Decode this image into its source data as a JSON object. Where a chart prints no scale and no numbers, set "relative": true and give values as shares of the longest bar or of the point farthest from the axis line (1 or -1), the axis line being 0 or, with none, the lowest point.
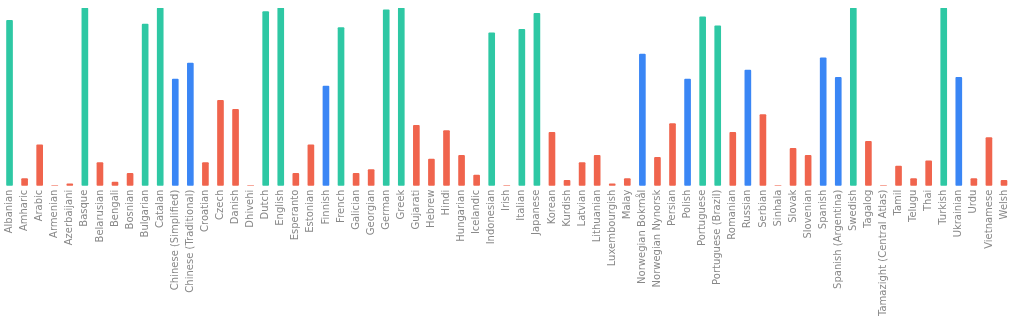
{
  "chart_data": {
    "type": "bar",
    "relative": true,
    "grid": false,
    "legend": false,
    "categories": [
      "Albanian",
      "Amharic",
      "Arabic",
      "Armenian",
      "Azerbaijani",
      "Basque",
      "Belarusian",
      "Bengali",
      "Bosnian",
      "Bulgarian",
      "Catalan",
      "Chinese (Simplified)",
      "Chinese (Traditional)",
      "Croatian",
      "Czech",
      "Danish",
      "Dhivehi",
      "Dutch",
      "English",
      "Esperanto",
      "Estonian",
      "Finnish",
      "French",
      "Galician",
      "Georgian",
      "German",
      "Greek",
      "Gujarati",
      "Hebrew",
      "Hindi",
      "Hungarian",
      "Icelandic",
      "Indonesian",
      "Irish",
      "Italian",
      "Japanese",
      "Korean",
      "Kurdish",
      "Latvian",
      "Lithuanian",
      "Luxembourgish",
      "Malay",
      "Norwegian Bokmål",
      "Norwegian Nynorsk",
      "Persian",
      "Polish",
      "Portuguese",
      "Portuguese (Brazil)",
      "Romanian",
      "Russian",
      "Serbian",
      "Sinhala",
      "Slovak",
      "Slovenian",
      "Spanish",
      "Spanish (Argentina)",
      "Swedish",
      "Tagalog",
      "Tamazight (Central Atlas)",
      "Tamil",
      "Telugu",
      "Thai",
      "Turkish",
      "Ukrainian",
      "Urdu",
      "Vietnamese",
      "Welsh"
    ],
    "values": [
      0.93,
      0.04,
      0.23,
      0,
      0.01,
      1,
      0.13,
      0.02,
      0.07,
      0.91,
      1,
      0.6,
      0.69,
      0.13,
      0.48,
      0.43,
      0,
      0.98,
      1,
      0.07,
      0.23,
      0.56,
      0.89,
      0.07,
      0.09,
      0.99,
      1,
      0.34,
      0.15,
      0.31,
      0.17,
      0.06,
      0.86,
      0,
      0.88,
      0.97,
      0.3,
      0.03,
      0.13,
      0.17,
      0.01,
      0.04,
      0.74,
      0.16,
      0.35,
      0.6,
      0.95,
      0.9,
      0.3,
      0.65,
      0.4,
      0,
      0.21,
      0.17,
      0.72,
      0.61,
      1,
      0.25,
      0,
      0.11,
      0.04,
      0.14,
      1,
      0.61,
      0.04,
      0.27,
      0.03
    ],
    "colors": [
      "#2ec8a4",
      "#f0644d",
      "#f0644d",
      "#f0644d",
      "#f0644d",
      "#2ec8a4",
      "#f0644d",
      "#f0644d",
      "#f0644d",
      "#2ec8a4",
      "#2ec8a4",
      "#3a86f5",
      "#3a86f5",
      "#f0644d",
      "#f0644d",
      "#f0644d",
      "#f0644d",
      "#2ec8a4",
      "#2ec8a4",
      "#f0644d",
      "#f0644d",
      "#3a86f5",
      "#2ec8a4",
      "#f0644d",
      "#f0644d",
      "#2ec8a4",
      "#2ec8a4",
      "#f0644d",
      "#f0644d",
      "#f0644d",
      "#f0644d",
      "#f0644d",
      "#2ec8a4",
      "#f0644d",
      "#2ec8a4",
      "#2ec8a4",
      "#f0644d",
      "#f0644d",
      "#f0644d",
      "#f0644d",
      "#f0644d",
      "#f0644d",
      "#3a86f5",
      "#f0644d",
      "#f0644d",
      "#3a86f5",
      "#2ec8a4",
      "#2ec8a4",
      "#f0644d",
      "#3a86f5",
      "#f0644d",
      "#f0644d",
      "#f0644d",
      "#f0644d",
      "#3a86f5",
      "#3a86f5",
      "#2ec8a4",
      "#f0644d",
      "#f0644d",
      "#f0644d",
      "#f0644d",
      "#f0644d",
      "#2ec8a4",
      "#3a86f5",
      "#f0644d",
      "#f0644d",
      "#f0644d"
    ]
  }
}
